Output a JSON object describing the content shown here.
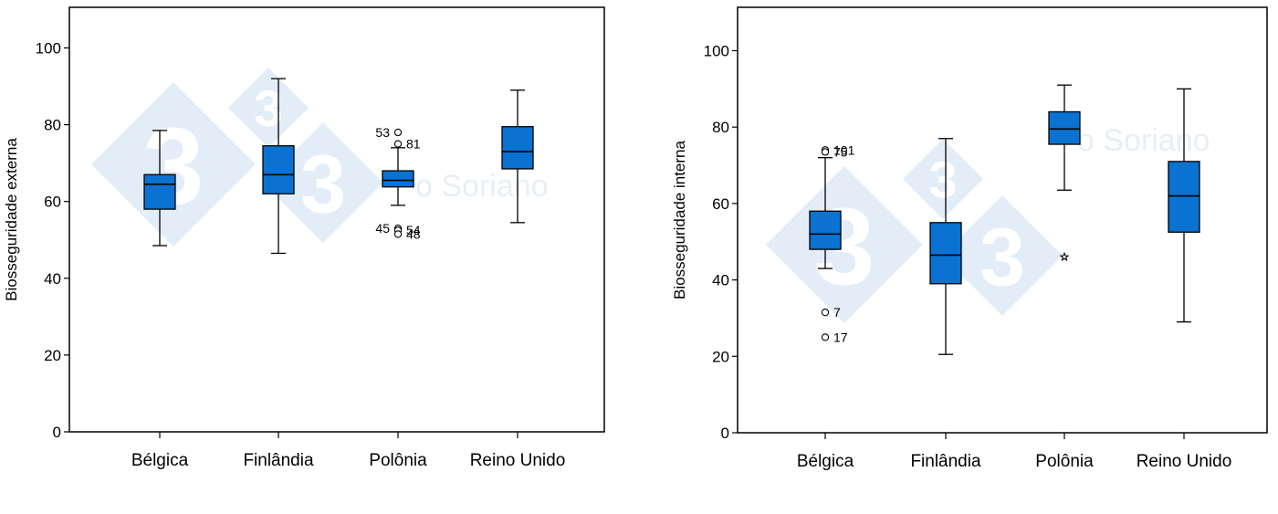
{
  "watermark": {
    "text": "3tres3",
    "suffix": "Soriano",
    "prefix": "o"
  },
  "chart_data": [
    {
      "type": "box",
      "title": "",
      "ylabel": "Biosseguridade externa",
      "xlabel": "",
      "ylim": [
        0,
        110
      ],
      "yticks": [
        0,
        20,
        40,
        60,
        80,
        100
      ],
      "categories": [
        "Bélgica",
        "Finlândia",
        "Polônia",
        "Reino Unido"
      ],
      "series": [
        {
          "name": "Bélgica",
          "min": 48.5,
          "q1": 58,
          "median": 64.5,
          "q3": 67,
          "max": 78.5,
          "outliers": []
        },
        {
          "name": "Finlândia",
          "min": 46.5,
          "q1": 62,
          "median": 67,
          "q3": 74.5,
          "max": 92,
          "outliers": []
        },
        {
          "name": "Polônia",
          "min": 59,
          "q1": 63.8,
          "median": 65.5,
          "q3": 68,
          "max": 74,
          "outliers": [
            {
              "value": 78,
              "label": "53",
              "side": "left"
            },
            {
              "value": 75,
              "label": "81",
              "side": "right"
            },
            {
              "value": 53,
              "label": "45",
              "side": "left"
            },
            {
              "value": 52.5,
              "label": "54",
              "side": "right"
            },
            {
              "value": 51.5,
              "label": "48",
              "side": "right"
            }
          ]
        },
        {
          "name": "Reino Unido",
          "min": 54.5,
          "q1": 68.5,
          "median": 73,
          "q3": 79.5,
          "max": 89,
          "outliers": []
        }
      ]
    },
    {
      "type": "box",
      "title": "",
      "ylabel": "Biosseguridade interna",
      "xlabel": "",
      "ylim": [
        0,
        110
      ],
      "yticks": [
        0,
        20,
        40,
        60,
        80,
        100
      ],
      "categories": [
        "Bélgica",
        "Finlândia",
        "Polônia",
        "Reino Unido"
      ],
      "series": [
        {
          "name": "Bélgica",
          "min": 43,
          "q1": 48,
          "median": 52,
          "q3": 58,
          "max": 72,
          "outliers": [
            {
              "value": 74,
              "label": "101",
              "side": "right"
            },
            {
              "value": 73.5,
              "label": "75",
              "side": "right"
            },
            {
              "value": 31.5,
              "label": "7",
              "side": "right"
            },
            {
              "value": 25,
              "label": "17",
              "side": "right"
            }
          ]
        },
        {
          "name": "Finlândia",
          "min": 20.5,
          "q1": 39,
          "median": 46.5,
          "q3": 55,
          "max": 77,
          "outliers": []
        },
        {
          "name": "Polônia",
          "min": 63.5,
          "q1": 75.5,
          "median": 79.5,
          "q3": 84,
          "max": 91,
          "outliers": [
            {
              "value": 46,
              "label": "",
              "side": "right",
              "marker": "star"
            }
          ]
        },
        {
          "name": "Reino Unido",
          "min": 29,
          "q1": 52.5,
          "median": 62,
          "q3": 71,
          "max": 90,
          "outliers": []
        }
      ]
    }
  ]
}
